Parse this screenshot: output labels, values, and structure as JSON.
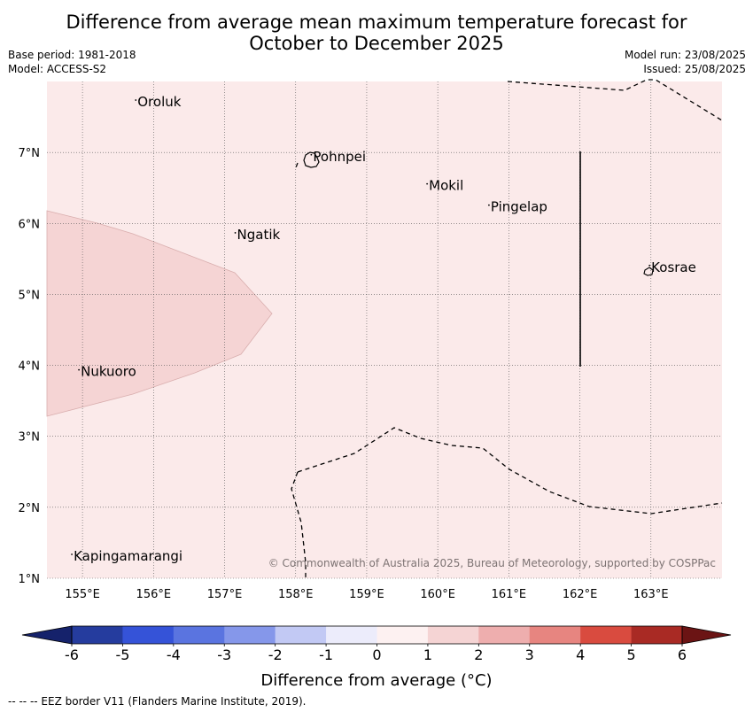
{
  "title_line1": "Difference from average mean maximum temperature forecast for",
  "title_line2": "October to December 2025",
  "base_period": "Base period: 1981-2018",
  "model": "Model: ACCESS-S2",
  "model_run": "Model run: 23/08/2025",
  "issued": "Issued: 25/08/2025",
  "copyright": "© Commonwealth of Australia 2025, Bureau of Meteorology, supported by COSPPac",
  "map": {
    "lon_range": [
      154.5,
      164.0
    ],
    "lat_range": [
      1.0,
      8.0
    ],
    "lon_ticks": [
      155,
      156,
      157,
      158,
      159,
      160,
      161,
      162,
      163
    ],
    "lon_tick_labels": [
      "155°E",
      "156°E",
      "157°E",
      "158°E",
      "159°E",
      "160°E",
      "161°E",
      "162°E",
      "163°E"
    ],
    "lat_ticks": [
      1,
      2,
      3,
      4,
      5,
      6,
      7
    ],
    "lat_tick_labels": [
      "1°N",
      "2°N",
      "3°N",
      "4°N",
      "5°N",
      "6°N",
      "7°N"
    ],
    "background_anomaly_band": "0 to 1",
    "background_color": "#fbeaea",
    "region_anomaly_band": "1 to 2",
    "region_color": "#f5d4d4",
    "places": [
      {
        "name": "Oroluk",
        "lon": 155.75,
        "lat": 7.65
      },
      {
        "name": "Pohnpei",
        "lon": 158.22,
        "lat": 6.88
      },
      {
        "name": "Mokil",
        "lon": 159.85,
        "lat": 6.47
      },
      {
        "name": "Pingelap",
        "lon": 160.72,
        "lat": 6.17
      },
      {
        "name": "Ngatik",
        "lon": 157.15,
        "lat": 5.78
      },
      {
        "name": "Kosrae",
        "lon": 162.98,
        "lat": 5.32
      },
      {
        "name": "Nukuoro",
        "lon": 154.95,
        "lat": 3.85
      },
      {
        "name": "Kapingamarangi",
        "lon": 154.85,
        "lat": 1.25
      }
    ]
  },
  "colorbar": {
    "tick_labels": [
      "-6",
      "-5",
      "-4",
      "-3",
      "-2",
      "-1",
      "0",
      "1",
      "2",
      "3",
      "4",
      "5",
      "6"
    ],
    "colors": [
      "#253c9e",
      "#3553d8",
      "#5a74e0",
      "#8597ea",
      "#c2c9f4",
      "#ececfb",
      "#fdf1f1",
      "#f5d4d4",
      "#eeaeae",
      "#e78580",
      "#d94b3f",
      "#a92a24"
    ],
    "under_color": "#15226b",
    "over_color": "#6b1414",
    "label": "Difference from average (°C)"
  },
  "legend_note": "--  --  -- EEZ border V11 (Flanders Marine Institute, 2019)."
}
